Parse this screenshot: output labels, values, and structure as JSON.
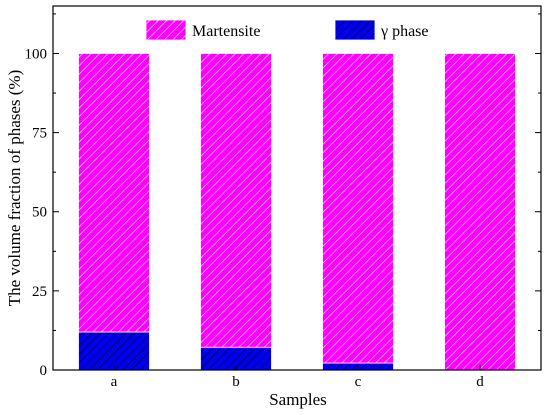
{
  "chart_data": {
    "type": "bar",
    "stacked": true,
    "categories": [
      "a",
      "b",
      "c",
      "d"
    ],
    "series": [
      {
        "name": "γ phase",
        "values": [
          12.0,
          7.2,
          2.2,
          0.0
        ],
        "color": "#0000ff",
        "hatch": "diagonal"
      },
      {
        "name": "Martensite",
        "values": [
          88.0,
          92.8,
          97.8,
          100.0
        ],
        "color": "#ff00ff",
        "hatch": "diagonal"
      }
    ],
    "xlabel": "Samples",
    "ylabel": "The volume fraction of phases (%)",
    "ylim": [
      0,
      115
    ],
    "yticks": [
      0,
      25,
      50,
      75,
      100
    ],
    "legend": {
      "placement": "top",
      "entries": [
        "Martensite",
        "γ phase"
      ]
    },
    "grid": false
  }
}
